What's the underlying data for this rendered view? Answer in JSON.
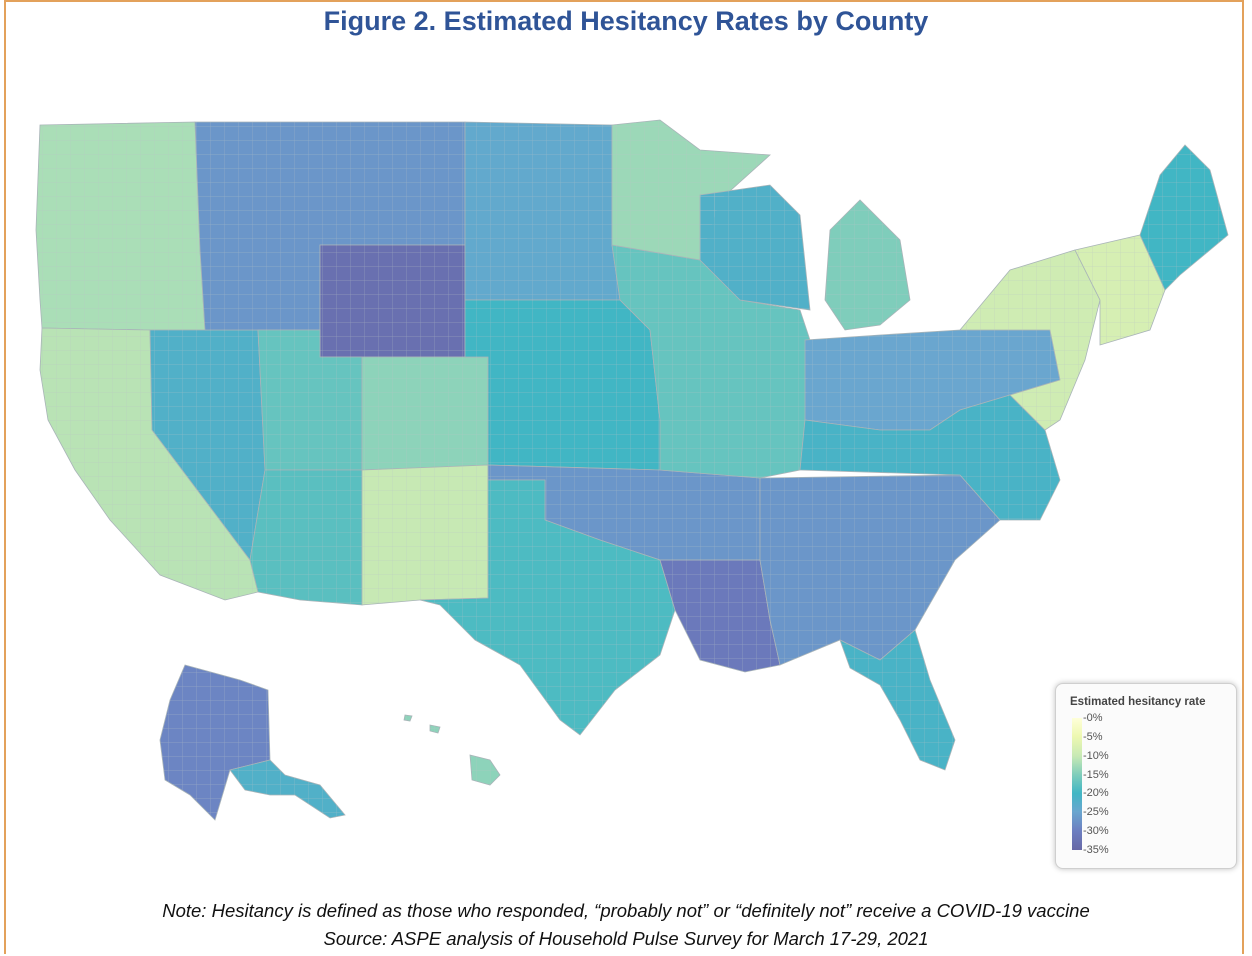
{
  "title": "Figure 2. Estimated Hesitancy Rates by County",
  "legend": {
    "title": "Estimated hesitancy rate",
    "ticks": [
      "0%",
      "5%",
      "10%",
      "15%",
      "20%",
      "25%",
      "30%",
      "35%"
    ],
    "colors": [
      "#ffffd9",
      "#edf8b1",
      "#c7e9b4",
      "#7fcdbb",
      "#41b6c4",
      "#6aa6cf",
      "#6c7dc0",
      "#6768a6"
    ]
  },
  "map": {
    "regions": [
      {
        "name": "pacific-northwest",
        "rate": 12
      },
      {
        "name": "california",
        "rate": 11
      },
      {
        "name": "nevada",
        "rate": 22
      },
      {
        "name": "montana-idaho",
        "rate": 27
      },
      {
        "name": "wyoming",
        "rate": 33
      },
      {
        "name": "dakotas",
        "rate": 24
      },
      {
        "name": "utah",
        "rate": 17
      },
      {
        "name": "colorado",
        "rate": 14
      },
      {
        "name": "arizona",
        "rate": 18
      },
      {
        "name": "new-mexico",
        "rate": 10
      },
      {
        "name": "texas",
        "rate": 19
      },
      {
        "name": "great-plains",
        "rate": 20
      },
      {
        "name": "oklahoma-arkansas",
        "rate": 27
      },
      {
        "name": "deep-south",
        "rate": 27
      },
      {
        "name": "louisiana-delta",
        "rate": 31
      },
      {
        "name": "florida",
        "rate": 21
      },
      {
        "name": "midwest",
        "rate": 17
      },
      {
        "name": "wisconsin",
        "rate": 22
      },
      {
        "name": "minnesota",
        "rate": 13
      },
      {
        "name": "michigan",
        "rate": 15
      },
      {
        "name": "ohio-pennsylvania",
        "rate": 25
      },
      {
        "name": "appalachia-carolinas",
        "rate": 21
      },
      {
        "name": "mid-atlantic",
        "rate": 9
      },
      {
        "name": "new-england",
        "rate": 8
      },
      {
        "name": "maine",
        "rate": 20
      },
      {
        "name": "alaska-interior",
        "rate": 29
      },
      {
        "name": "alaska-south",
        "rate": 22
      },
      {
        "name": "hawaii",
        "rate": 14
      }
    ]
  },
  "note": "Note: Hesitancy is defined as those who responded, “probably not” or “definitely not” receive a COVID-19 vaccine",
  "source": "Source: ASPE analysis of Household Pulse Survey for March 17-29, 2021"
}
